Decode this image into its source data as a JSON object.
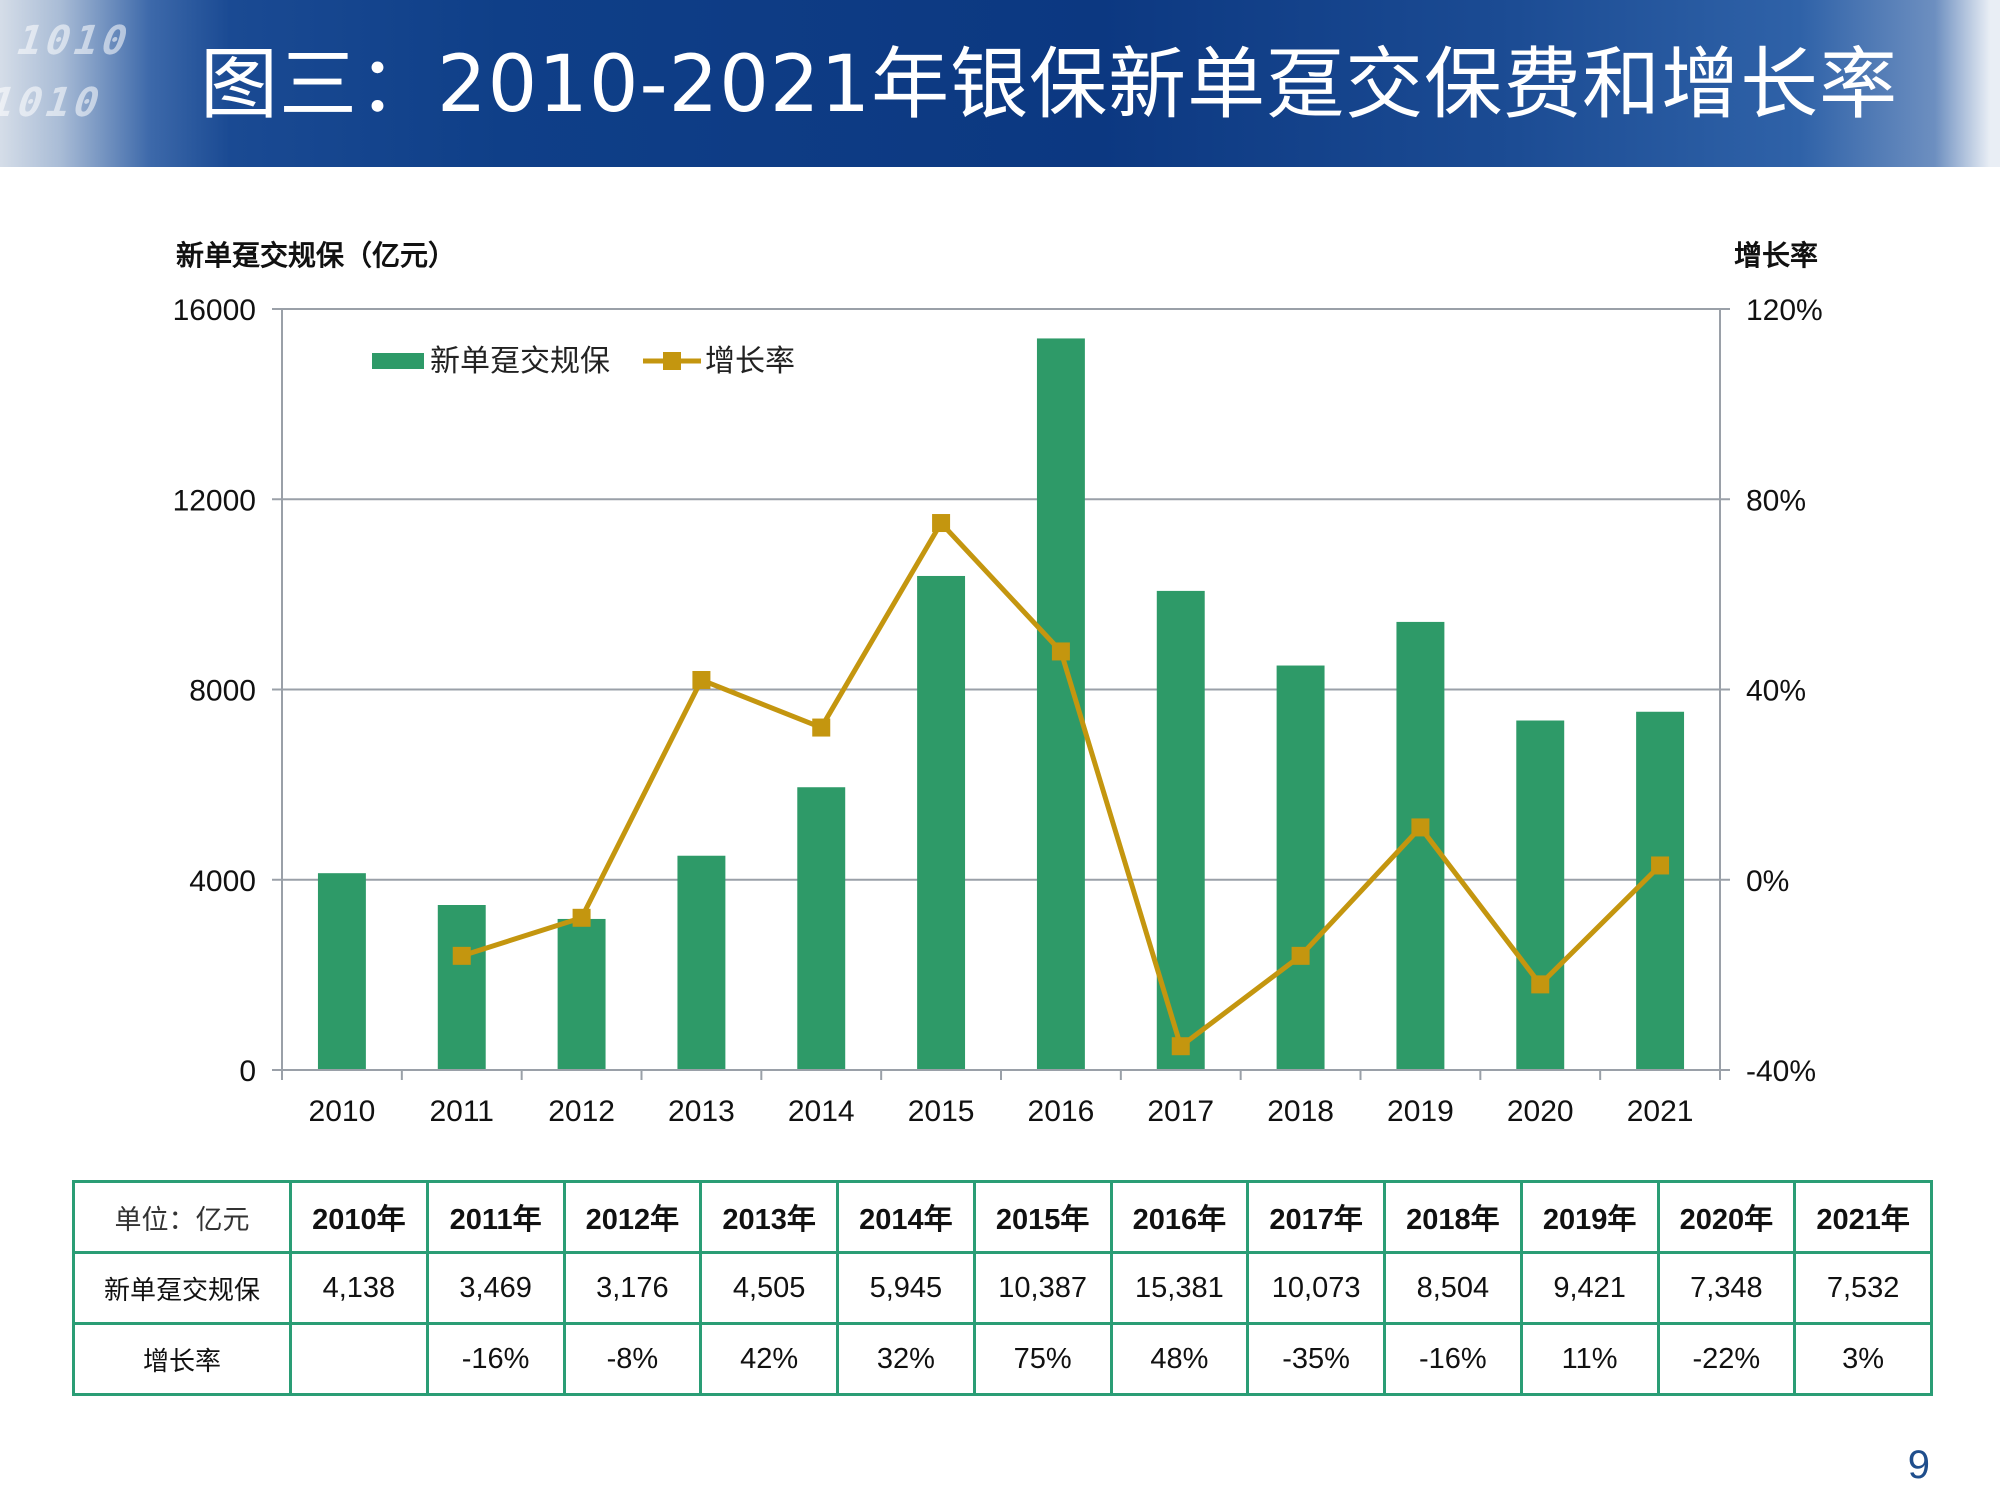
{
  "slide": {
    "title": "图三：2010-2021年银保新单趸交保费和增长率",
    "page_number": "9"
  },
  "colors": {
    "bar": "#2e9a68",
    "line": "#c4960f",
    "banner": "#0f3f88",
    "table_border": "#2a9d75"
  },
  "chart_data": {
    "type": "bar",
    "title": "",
    "categories": [
      "2010",
      "2011",
      "2012",
      "2013",
      "2014",
      "2015",
      "2016",
      "2017",
      "2018",
      "2019",
      "2020",
      "2021"
    ],
    "y_left_label": "新单趸交规保（亿元）",
    "y_right_label": "增长率",
    "y_left_ticks": [
      "0",
      "4000",
      "8000",
      "12000",
      "16000"
    ],
    "y_right_ticks": [
      "-40%",
      "0%",
      "40%",
      "80%",
      "120%"
    ],
    "ylim_left": [
      0,
      16000
    ],
    "ylim_right": [
      -40,
      120
    ],
    "grid": true,
    "legend_position": "top-left",
    "series": [
      {
        "name": "新单趸交规保",
        "type": "bar",
        "axis": "left",
        "values": [
          4138,
          3469,
          3176,
          4505,
          5945,
          10387,
          15381,
          10073,
          8504,
          9421,
          7348,
          7532
        ]
      },
      {
        "name": "增长率",
        "type": "line",
        "axis": "right",
        "values": [
          null,
          -16,
          -8,
          42,
          32,
          75,
          48,
          -35,
          -16,
          11,
          -22,
          3
        ]
      }
    ]
  },
  "table": {
    "unit": "单位：亿元",
    "years": [
      "2010年",
      "2011年",
      "2012年",
      "2013年",
      "2014年",
      "2015年",
      "2016年",
      "2017年",
      "2018年",
      "2019年",
      "2020年",
      "2021年"
    ],
    "premium_label": "新单趸交规保",
    "premium": [
      "4,138",
      "3,469",
      "3,176",
      "4,505",
      "5,945",
      "10,387",
      "15,381",
      "10,073",
      "8,504",
      "9,421",
      "7,348",
      "7,532"
    ],
    "growth_label": "增长率",
    "growth": [
      "",
      "-16%",
      "-8%",
      "42%",
      "32%",
      "75%",
      "48%",
      "-35%",
      "-16%",
      "11%",
      "-22%",
      "3%"
    ]
  }
}
